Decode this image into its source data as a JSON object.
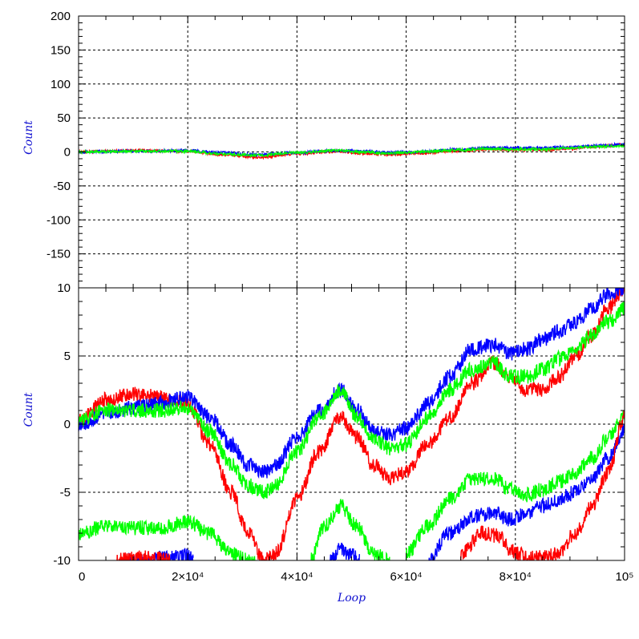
{
  "chart_data": [
    {
      "type": "line",
      "panel": "top",
      "ylabel": "Count",
      "xlabel": "",
      "xlim": [
        0,
        100000
      ],
      "ylim": [
        -200,
        200
      ],
      "y_ticks": [
        -150,
        -100,
        -50,
        0,
        50,
        100,
        150,
        200
      ],
      "grid": true,
      "series": [
        {
          "color": "#ff0000",
          "x": [
            0,
            10000,
            20000,
            26000,
            33000,
            40000,
            47000,
            52000,
            57000,
            62000,
            70000,
            75000,
            80000,
            85000,
            90000,
            95000,
            100000
          ],
          "values": [
            0,
            2,
            1,
            -4,
            -8,
            -3,
            1,
            -2,
            -4,
            -2,
            2,
            4,
            3,
            3,
            5,
            8,
            11
          ]
        },
        {
          "color": "#0000ff",
          "x": [
            0,
            10000,
            20000,
            26000,
            33000,
            40000,
            47000,
            52000,
            57000,
            62000,
            70000,
            75000,
            80000,
            85000,
            90000,
            95000,
            100000
          ],
          "values": [
            0,
            1,
            2,
            -1,
            -4,
            -1,
            2,
            1,
            -1,
            0,
            4,
            6,
            6,
            6,
            7,
            9,
            11
          ]
        },
        {
          "color": "#00ff00",
          "x": [
            0,
            10000,
            20000,
            26000,
            33000,
            40000,
            47000,
            52000,
            57000,
            62000,
            70000,
            75000,
            80000,
            85000,
            90000,
            95000,
            100000
          ],
          "values": [
            0,
            1,
            1,
            -3,
            -5,
            -1,
            2,
            0,
            -2,
            0,
            3,
            5,
            4,
            4,
            6,
            8,
            9
          ]
        }
      ]
    },
    {
      "type": "line",
      "panel": "bottom",
      "xlabel": "Loop",
      "ylabel": "Count",
      "xlim": [
        0,
        100000
      ],
      "ylim": [
        -10,
        10
      ],
      "y_ticks": [
        -10,
        -5,
        0,
        5,
        10
      ],
      "x_ticks": [
        "0",
        "2×10⁴",
        "4×10⁴",
        "6×10⁴",
        "8×10⁴",
        "10⁵"
      ],
      "x_tick_values": [
        0,
        20000,
        40000,
        60000,
        80000,
        100000
      ],
      "grid": true,
      "series": [
        {
          "color": "#ff0000",
          "x": [
            0,
            5000,
            10000,
            15000,
            20000,
            24000,
            28000,
            31000,
            34000,
            36000,
            40000,
            44000,
            48000,
            51000,
            54000,
            57000,
            60000,
            64000,
            68000,
            72000,
            76000,
            79000,
            82000,
            85000,
            88000,
            91000,
            94000,
            97000,
            100000
          ],
          "values": [
            0.2,
            1.8,
            2.2,
            2.0,
            1.5,
            -1.5,
            -5.0,
            -8.0,
            -10.0,
            -9.5,
            -5.5,
            -2.0,
            0.5,
            -1.0,
            -3.0,
            -4.0,
            -3.5,
            -1.5,
            0.5,
            3.0,
            4.5,
            3.5,
            2.5,
            2.5,
            3.5,
            5.0,
            6.5,
            8.5,
            10.0
          ]
        },
        {
          "color": "#0000ff",
          "x": [
            0,
            5000,
            10000,
            15000,
            20000,
            24000,
            28000,
            31000,
            34000,
            36000,
            40000,
            44000,
            48000,
            51000,
            54000,
            57000,
            60000,
            64000,
            68000,
            72000,
            76000,
            79000,
            82000,
            85000,
            88000,
            91000,
            94000,
            97000,
            100000
          ],
          "values": [
            0.0,
            0.8,
            1.2,
            1.5,
            2.0,
            0.5,
            -1.5,
            -3.0,
            -3.5,
            -3.0,
            -1.0,
            1.0,
            2.5,
            1.0,
            -0.5,
            -0.8,
            -0.3,
            1.5,
            3.5,
            5.5,
            5.8,
            5.2,
            5.5,
            6.2,
            6.8,
            7.5,
            8.5,
            9.5,
            10.0
          ]
        },
        {
          "color": "#00ff00",
          "x": [
            0,
            5000,
            10000,
            15000,
            20000,
            24000,
            28000,
            31000,
            34000,
            36000,
            40000,
            44000,
            48000,
            51000,
            54000,
            57000,
            60000,
            64000,
            68000,
            72000,
            76000,
            79000,
            82000,
            85000,
            88000,
            91000,
            94000,
            97000,
            100000
          ],
          "values": [
            0.3,
            1.0,
            1.0,
            1.0,
            1.2,
            -0.5,
            -3.0,
            -4.5,
            -5.0,
            -4.5,
            -2.0,
            0.5,
            2.5,
            0.5,
            -1.0,
            -1.8,
            -1.5,
            0.5,
            2.5,
            4.0,
            4.5,
            3.5,
            3.5,
            4.0,
            4.8,
            5.5,
            6.5,
            7.5,
            8.5
          ]
        },
        {
          "color": "#00ff00",
          "x": [
            0,
            5000,
            10000,
            15000,
            20000,
            24000,
            28000,
            31000,
            32500
          ],
          "values": [
            -8.0,
            -7.5,
            -7.6,
            -7.6,
            -7.2,
            -8.0,
            -9.5,
            -10.0,
            -10.0
          ]
        },
        {
          "color": "#00ff00",
          "x": [
            42500,
            45000,
            48000,
            51000,
            54000,
            57000
          ],
          "values": [
            -10.0,
            -7.5,
            -6.0,
            -7.5,
            -9.5,
            -10.0
          ]
        },
        {
          "color": "#00ff00",
          "x": [
            60000,
            64000,
            68000,
            72000,
            76000,
            79000,
            82000,
            85000,
            88000,
            91000,
            94000,
            97000,
            100000
          ],
          "values": [
            -9.5,
            -7.5,
            -5.5,
            -4.0,
            -4.0,
            -4.8,
            -5.2,
            -4.8,
            -4.2,
            -3.5,
            -2.5,
            -1.0,
            0.5
          ]
        },
        {
          "color": "#0000ff",
          "x": [
            8000,
            12000,
            16000,
            20000,
            21000
          ],
          "values": [
            -10.0,
            -10.0,
            -9.8,
            -9.6,
            -10.0
          ]
        },
        {
          "color": "#0000ff",
          "x": [
            46000,
            48000,
            50000,
            51500
          ],
          "values": [
            -10.0,
            -9.2,
            -9.6,
            -10.0
          ]
        },
        {
          "color": "#0000ff",
          "x": [
            64000,
            68000,
            72000,
            76000,
            79000,
            82000,
            85000,
            88000,
            91000,
            94000,
            97000,
            100000
          ],
          "values": [
            -10.0,
            -8.0,
            -6.8,
            -6.5,
            -7.0,
            -6.6,
            -6.0,
            -5.5,
            -5.0,
            -4.0,
            -2.5,
            -0.5
          ]
        },
        {
          "color": "#ff0000",
          "x": [
            7000,
            12000,
            15000,
            17000
          ],
          "values": [
            -10.0,
            -9.8,
            -9.9,
            -10.0
          ]
        },
        {
          "color": "#ff0000",
          "x": [
            70000,
            74000,
            77000,
            79000,
            82000,
            85000,
            88000,
            91000,
            94000,
            97000,
            100000
          ],
          "values": [
            -9.5,
            -8.0,
            -8.2,
            -9.2,
            -9.7,
            -9.8,
            -9.5,
            -8.0,
            -6.0,
            -3.5,
            0.5
          ]
        }
      ]
    }
  ]
}
